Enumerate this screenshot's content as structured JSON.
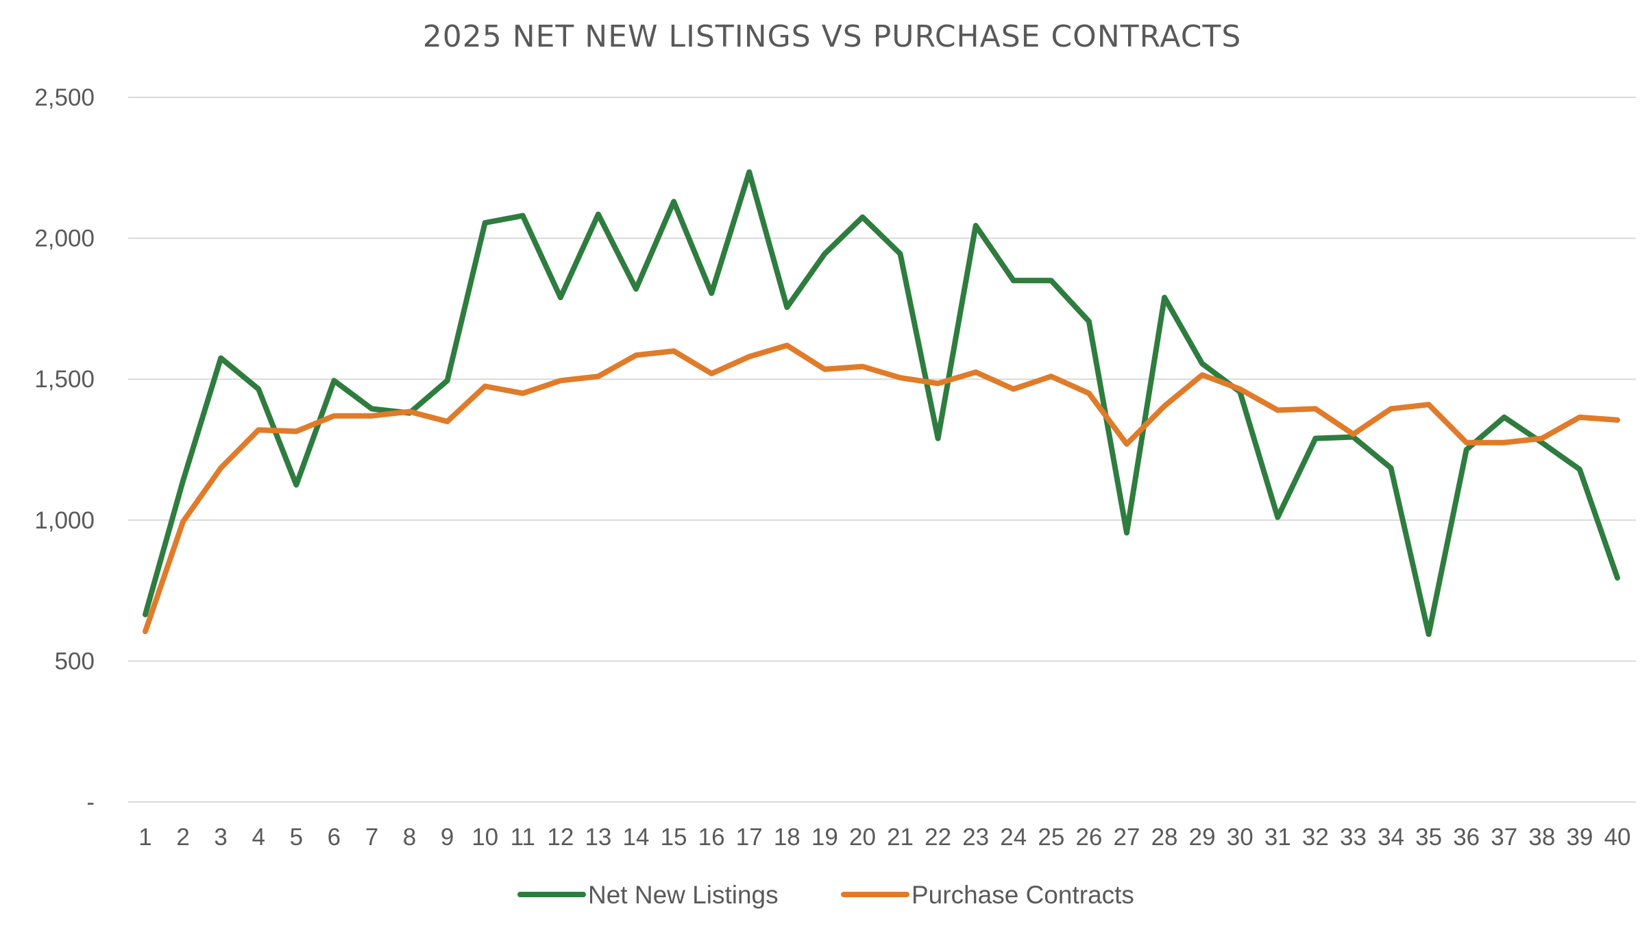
{
  "chart_data": {
    "type": "line",
    "title": "2025 NET NEW LISTINGS VS PURCHASE CONTRACTS",
    "xlabel": "",
    "ylabel": "",
    "categories": [
      "1",
      "2",
      "3",
      "4",
      "5",
      "6",
      "7",
      "8",
      "9",
      "10",
      "11",
      "12",
      "13",
      "14",
      "15",
      "16",
      "17",
      "18",
      "19",
      "20",
      "21",
      "22",
      "23",
      "24",
      "25",
      "26",
      "27",
      "28",
      "29",
      "30",
      "31",
      "32",
      "33",
      "34",
      "35",
      "36",
      "37",
      "38",
      "39",
      "40"
    ],
    "ylim": [
      0,
      2500
    ],
    "yticks": [
      0,
      500,
      1000,
      1500,
      2000,
      2500
    ],
    "ytick_labels": [
      "-",
      "500",
      "1,000",
      "1,500",
      "2,000",
      "2,500"
    ],
    "grid": true,
    "legend_position": "bottom",
    "series": [
      {
        "name": "Net New Listings",
        "color": "#2e7d3f",
        "values": [
          665,
          1140,
          1575,
          1465,
          1125,
          1495,
          1395,
          1380,
          1495,
          2055,
          2080,
          1790,
          2085,
          1820,
          2130,
          1805,
          2235,
          1755,
          1945,
          2075,
          1945,
          1290,
          2045,
          1850,
          1850,
          1705,
          955,
          1790,
          1555,
          1455,
          1010,
          1290,
          1295,
          1185,
          595,
          1250,
          1365,
          1275,
          1180,
          795
        ]
      },
      {
        "name": "Purchase Contracts",
        "color": "#e07b2a",
        "values": [
          605,
          995,
          1185,
          1320,
          1315,
          1370,
          1370,
          1385,
          1350,
          1475,
          1450,
          1495,
          1510,
          1585,
          1600,
          1520,
          1580,
          1620,
          1535,
          1545,
          1505,
          1485,
          1525,
          1465,
          1510,
          1450,
          1270,
          1405,
          1515,
          1465,
          1390,
          1395,
          1305,
          1395,
          1410,
          1275,
          1275,
          1290,
          1365,
          1355
        ]
      }
    ]
  }
}
